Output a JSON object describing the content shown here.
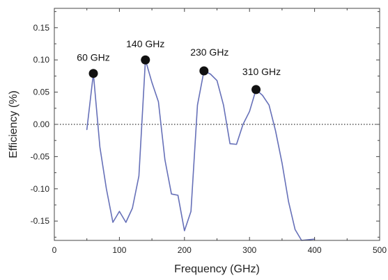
{
  "chart_data": {
    "type": "line",
    "title": "",
    "xlabel": "Frequency (GHz)",
    "ylabel": "Efficiency (%)",
    "xlim": [
      0,
      500
    ],
    "ylim": [
      -0.18,
      0.18
    ],
    "x_ticks": [
      0,
      100,
      200,
      300,
      400,
      500
    ],
    "y_ticks": [
      -0.15,
      -0.1,
      -0.05,
      0.0,
      0.05,
      0.1,
      0.15
    ],
    "x_tick_labels": [
      "0",
      "100",
      "200",
      "300",
      "400",
      "500"
    ],
    "y_tick_labels": [
      "-0.15",
      "-0.10",
      "-0.05",
      "0.00",
      "0.05",
      "0.10",
      "0.15"
    ],
    "grid": false,
    "reference_line": {
      "y": 0,
      "style": "dotted",
      "color": "#000000"
    },
    "series": [
      {
        "color": "#6670b8",
        "x": [
          50,
          60,
          70,
          80,
          90,
          100,
          110,
          120,
          130,
          140,
          150,
          160,
          170,
          180,
          190,
          200,
          210,
          220,
          230,
          240,
          250,
          260,
          270,
          280,
          290,
          300,
          310,
          320,
          330,
          340,
          350,
          360,
          370,
          380,
          390,
          400
        ],
        "y": [
          -0.008,
          0.079,
          -0.035,
          -0.1,
          -0.152,
          -0.135,
          -0.152,
          -0.13,
          -0.08,
          0.1,
          0.065,
          0.035,
          -0.055,
          -0.108,
          -0.11,
          -0.165,
          -0.135,
          0.03,
          0.083,
          0.078,
          0.068,
          0.03,
          -0.03,
          -0.031,
          0.0,
          0.02,
          0.054,
          0.045,
          0.03,
          -0.01,
          -0.06,
          -0.12,
          -0.163,
          -0.18,
          -0.179,
          -0.178
        ]
      }
    ],
    "markers": [
      {
        "label": "60 GHz",
        "x": 60,
        "y": 0.079,
        "color": "#111111"
      },
      {
        "label": "140 GHz",
        "x": 140,
        "y": 0.1,
        "color": "#111111"
      },
      {
        "label": "230 GHz",
        "x": 230,
        "y": 0.083,
        "color": "#111111"
      },
      {
        "label": "310 GHz",
        "x": 310,
        "y": 0.054,
        "color": "#111111"
      }
    ]
  }
}
